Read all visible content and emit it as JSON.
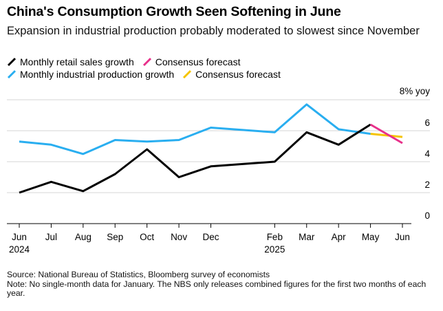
{
  "title": "China's Consumption Growth Seen Softening in June",
  "subtitle": "Expansion in industrial production probably moderated to slowest since November",
  "legend": [
    [
      {
        "label": "Monthly retail sales growth",
        "color": "#000000"
      },
      {
        "label": "Consensus forecast",
        "color": "#e8308a"
      }
    ],
    [
      {
        "label": "Monthly industrial production growth",
        "color": "#29aef0"
      },
      {
        "label": "Consensus forecast",
        "color": "#f5c400"
      }
    ]
  ],
  "chart_data": {
    "type": "line",
    "unit_label": "8% yoy",
    "ylim": [
      0,
      8
    ],
    "y_ticks": [
      "6",
      "4",
      "2",
      "0"
    ],
    "x_ticks": [
      {
        "label": "Jun",
        "sub": "2024",
        "month": "2024-06"
      },
      {
        "label": "Jul",
        "sub": "",
        "month": "2024-07"
      },
      {
        "label": "Aug",
        "sub": "",
        "month": "2024-08"
      },
      {
        "label": "Sep",
        "sub": "",
        "month": "2024-09"
      },
      {
        "label": "Oct",
        "sub": "",
        "month": "2024-10"
      },
      {
        "label": "Nov",
        "sub": "",
        "month": "2024-11"
      },
      {
        "label": "Dec",
        "sub": "",
        "month": "2024-12"
      },
      {
        "label": "Feb",
        "sub": "2025",
        "month": "2025-02"
      },
      {
        "label": "Mar",
        "sub": "",
        "month": "2025-03"
      },
      {
        "label": "Apr",
        "sub": "",
        "month": "2025-04"
      },
      {
        "label": "May",
        "sub": "",
        "month": "2025-05"
      },
      {
        "label": "Jun",
        "sub": "",
        "month": "2025-06"
      }
    ],
    "series": [
      {
        "name": "Monthly retail sales growth",
        "color": "#000000",
        "points": [
          {
            "month": "2024-06",
            "value": 2.0
          },
          {
            "month": "2024-07",
            "value": 2.7
          },
          {
            "month": "2024-08",
            "value": 2.1
          },
          {
            "month": "2024-09",
            "value": 3.2
          },
          {
            "month": "2024-10",
            "value": 4.8
          },
          {
            "month": "2024-11",
            "value": 3.0
          },
          {
            "month": "2024-12",
            "value": 3.7
          },
          {
            "month": "2025-02",
            "value": 4.0
          },
          {
            "month": "2025-03",
            "value": 5.9
          },
          {
            "month": "2025-04",
            "value": 5.1
          },
          {
            "month": "2025-05",
            "value": 6.4
          }
        ]
      },
      {
        "name": "Consensus forecast",
        "color": "#e8308a",
        "points": [
          {
            "month": "2025-05",
            "value": 6.4
          },
          {
            "month": "2025-06",
            "value": 5.2
          }
        ]
      },
      {
        "name": "Monthly industrial production growth",
        "color": "#29aef0",
        "points": [
          {
            "month": "2024-06",
            "value": 5.3
          },
          {
            "month": "2024-07",
            "value": 5.1
          },
          {
            "month": "2024-08",
            "value": 4.5
          },
          {
            "month": "2024-09",
            "value": 5.4
          },
          {
            "month": "2024-10",
            "value": 5.3
          },
          {
            "month": "2024-11",
            "value": 5.4
          },
          {
            "month": "2024-12",
            "value": 6.2
          },
          {
            "month": "2025-02",
            "value": 5.9
          },
          {
            "month": "2025-03",
            "value": 7.7
          },
          {
            "month": "2025-04",
            "value": 6.1
          },
          {
            "month": "2025-05",
            "value": 5.8
          }
        ]
      },
      {
        "name": "Consensus forecast",
        "color": "#f5c400",
        "points": [
          {
            "month": "2025-05",
            "value": 5.8
          },
          {
            "month": "2025-06",
            "value": 5.6
          }
        ]
      }
    ]
  },
  "footer": {
    "source": "Source: National Bureau of Statistics, Bloomberg survey of economists",
    "note": "Note: No single-month data for January. The NBS only releases combined figures for the first two months of each year."
  }
}
